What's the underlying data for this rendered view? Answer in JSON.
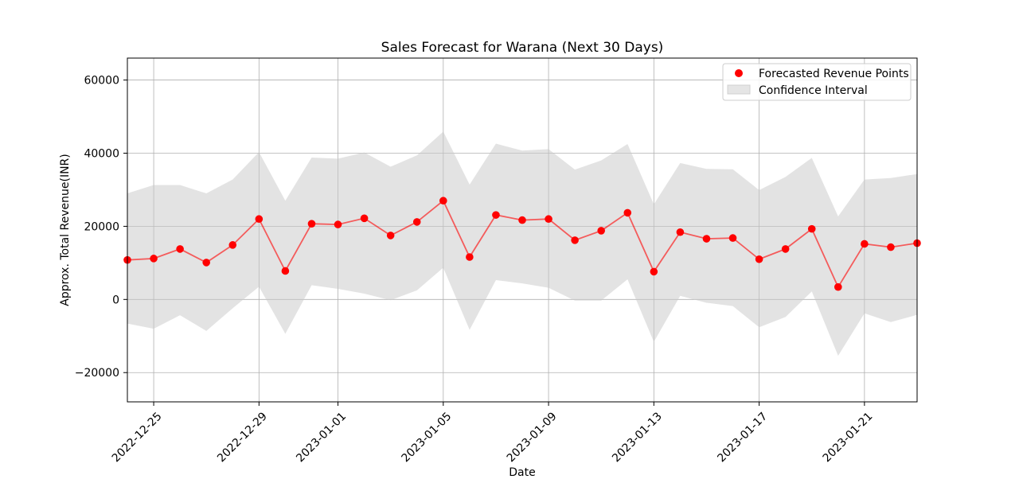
{
  "chart_data": {
    "type": "line",
    "title": "Sales Forecast for Warana (Next 30 Days)",
    "xlabel": "Date",
    "ylabel": "Approx. Total Revenue(INR)",
    "xlim": [
      "2022-12-24",
      "2023-01-23"
    ],
    "ylim": [
      -28000,
      66000
    ],
    "grid": true,
    "legend_position": "top-right",
    "x_ticks": [
      "2022-12-25",
      "2022-12-29",
      "2023-01-01",
      "2023-01-05",
      "2023-01-09",
      "2023-01-13",
      "2023-01-17",
      "2023-01-21"
    ],
    "y_ticks": [
      -20000,
      0,
      20000,
      40000,
      60000
    ],
    "y_tick_labels": [
      "−20000",
      "0",
      "20000",
      "40000",
      "60000"
    ],
    "x": [
      "2022-12-24",
      "2022-12-25",
      "2022-12-26",
      "2022-12-27",
      "2022-12-28",
      "2022-12-29",
      "2022-12-30",
      "2022-12-31",
      "2023-01-01",
      "2023-01-02",
      "2023-01-03",
      "2023-01-04",
      "2023-01-05",
      "2023-01-06",
      "2023-01-07",
      "2023-01-08",
      "2023-01-09",
      "2023-01-10",
      "2023-01-11",
      "2023-01-12",
      "2023-01-13",
      "2023-01-14",
      "2023-01-15",
      "2023-01-16",
      "2023-01-17",
      "2023-01-18",
      "2023-01-19",
      "2023-01-20",
      "2023-01-21",
      "2023-01-22",
      "2023-01-23"
    ],
    "series": [
      {
        "name": "Forecasted Revenue Points",
        "color": "#ff0000",
        "values": [
          10800,
          11200,
          13800,
          10100,
          14900,
          22000,
          7800,
          20700,
          20500,
          22200,
          17500,
          21200,
          27000,
          11600,
          23100,
          21700,
          22000,
          16200,
          18800,
          23700,
          7600,
          18400,
          16600,
          16800,
          11000,
          13800,
          19300,
          3400,
          15200,
          14300,
          15400
        ]
      },
      {
        "name": "Confidence Interval",
        "color": "#e5e5e5",
        "upper": [
          29000,
          31300,
          31300,
          29000,
          32800,
          40300,
          27000,
          38800,
          38500,
          40200,
          36300,
          39400,
          45900,
          31400,
          42600,
          40700,
          41100,
          35500,
          38000,
          42500,
          26000,
          37300,
          35700,
          35600,
          29900,
          33500,
          38700,
          22700,
          32800,
          33200,
          34300
        ],
        "lower": [
          -6600,
          -8000,
          -4300,
          -8600,
          -2400,
          3500,
          -9400,
          3900,
          2900,
          1600,
          -200,
          2500,
          8700,
          -8300,
          5300,
          4400,
          3200,
          -300,
          -300,
          5500,
          -11600,
          1000,
          -900,
          -1800,
          -7600,
          -4800,
          2200,
          -15400,
          -3800,
          -6200,
          -4200
        ]
      }
    ]
  }
}
